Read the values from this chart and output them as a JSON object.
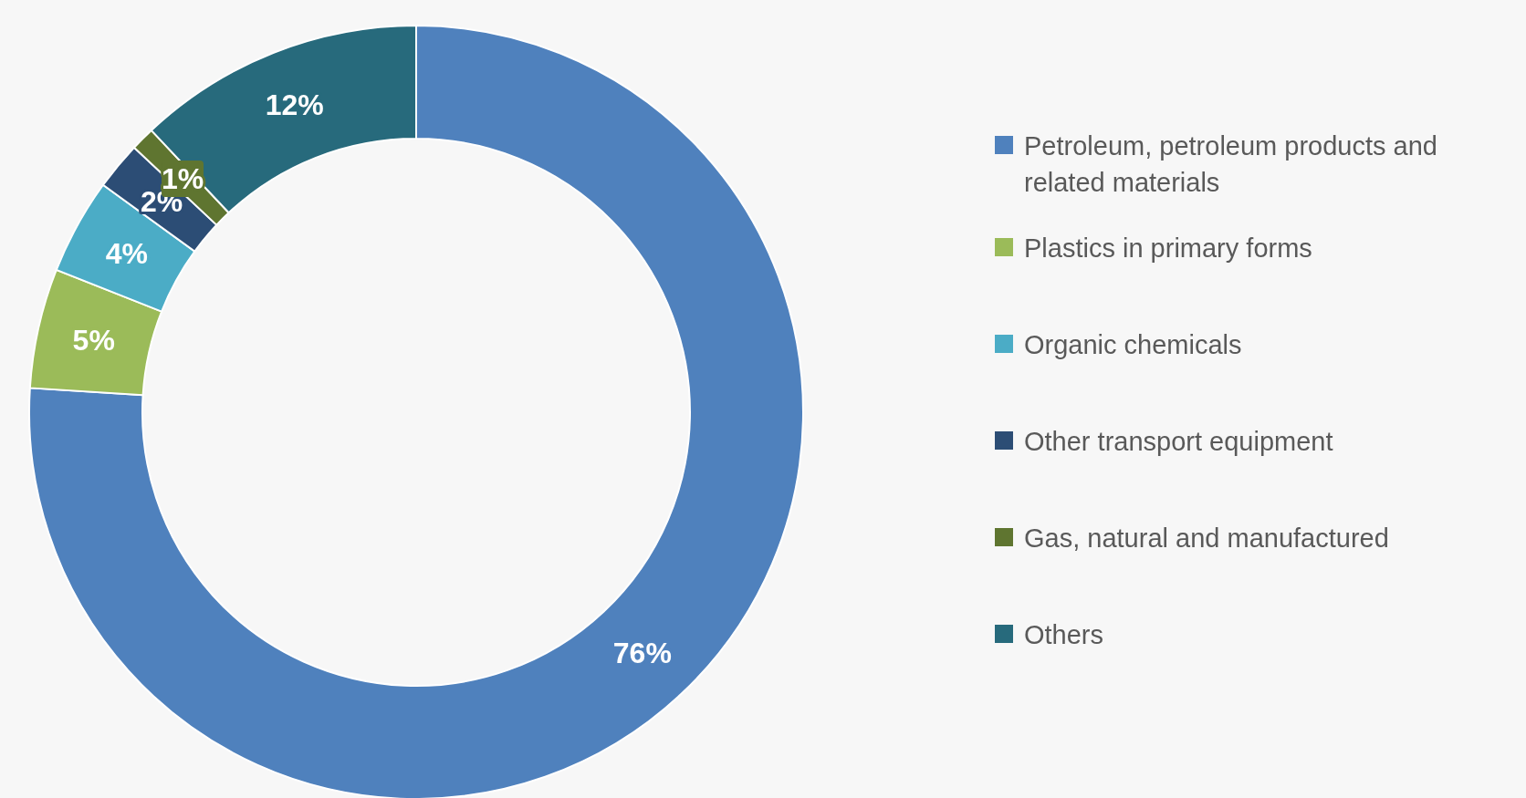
{
  "chart_data": {
    "type": "donut",
    "categories": [
      "Petroleum, petroleum products and related materials",
      "Plastics in primary forms",
      "Organic chemicals",
      "Other transport equipment",
      "Gas, natural and manufactured",
      "Others"
    ],
    "values": [
      76,
      5,
      4,
      2,
      1,
      12
    ],
    "colors": [
      "#4f81bd",
      "#9bbb59",
      "#4bacc6",
      "#2c4d75",
      "#5f7530",
      "#276a7c"
    ],
    "value_labels": [
      "76%",
      "5%",
      "4%",
      "2%",
      "1%",
      "12%"
    ],
    "legend": "right"
  }
}
